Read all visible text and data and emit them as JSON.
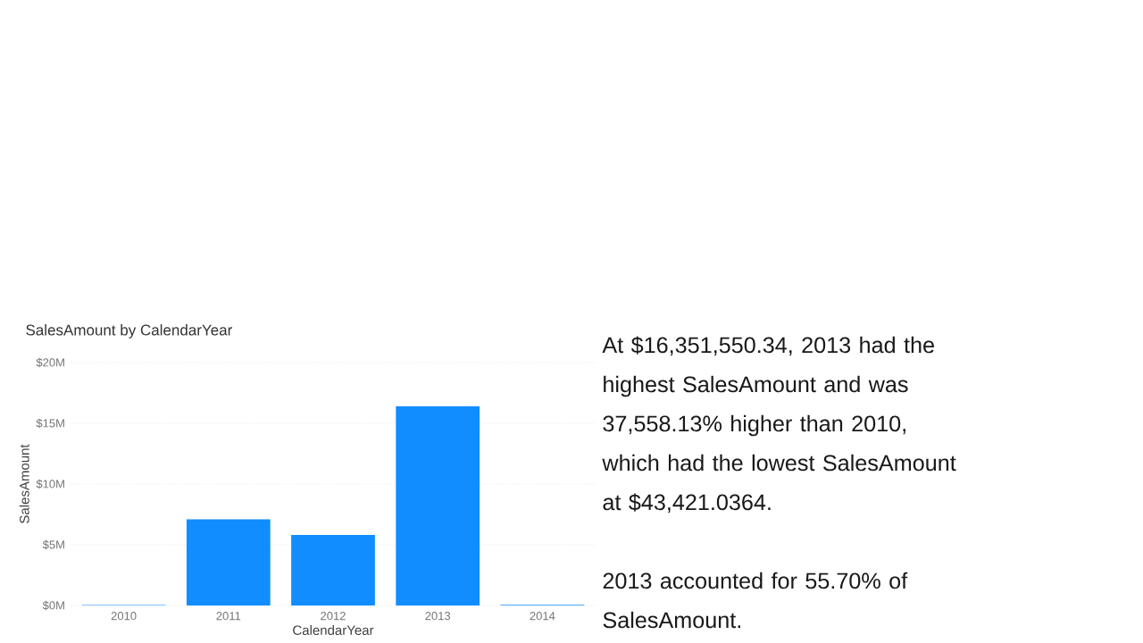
{
  "chart_data": [
    {
      "type": "bar",
      "title": "SalesAmount by CalendarYear",
      "xlabel": "CalendarYear",
      "ylabel": "SalesAmount",
      "categories": [
        "2010",
        "2011",
        "2012",
        "2013",
        "2014"
      ],
      "values": [
        40000,
        7100000,
        5800000,
        16400000,
        50000
      ],
      "color": "#118dff",
      "ylim": [
        0,
        20000000
      ],
      "yticks": [
        {
          "value": 0,
          "label": "$0M"
        },
        {
          "value": 5000000,
          "label": "$5M"
        },
        {
          "value": 10000000,
          "label": "$10M"
        },
        {
          "value": 15000000,
          "label": "$15M"
        },
        {
          "value": 20000000,
          "label": "$20M"
        }
      ],
      "grid": "y"
    },
    {
      "type": "other",
      "annotations": [
        "At $16,351,550.34, 2013 had the highest SalesAmount and was 37,558.13% higher than 2010, which had the lowest SalesAmount at $43,421.0364.",
        "2013 accounted for 55.70% of SalesAmount."
      ]
    }
  ]
}
